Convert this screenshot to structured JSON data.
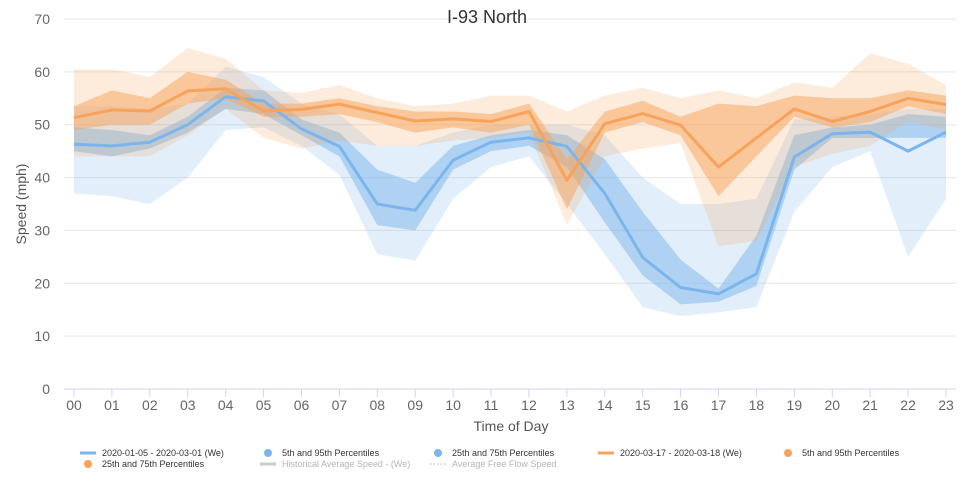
{
  "chart_data": {
    "type": "area",
    "title": "I-93 North",
    "xlabel": "Time of Day",
    "ylabel": "Speed (mph)",
    "ylim": [
      0,
      70
    ],
    "yticks": [
      0,
      10,
      20,
      30,
      40,
      50,
      60,
      70
    ],
    "categories": [
      "00",
      "01",
      "02",
      "03",
      "04",
      "05",
      "06",
      "07",
      "08",
      "09",
      "10",
      "11",
      "12",
      "13",
      "14",
      "15",
      "16",
      "17",
      "18",
      "19",
      "20",
      "21",
      "22",
      "23"
    ],
    "grid": true,
    "legend_position": "bottom",
    "series": [
      {
        "name": "2020-01-05 - 2020-03-01 (We)",
        "color": "#7cb5ec",
        "values": [
          46.3,
          46.0,
          46.7,
          50.0,
          55.3,
          54.5,
          49.2,
          45.9,
          35.0,
          33.8,
          43.3,
          46.7,
          47.5,
          45.9,
          37.0,
          24.9,
          19.2,
          18.0,
          21.8,
          43.9,
          48.3,
          48.6,
          45.0,
          48.6
        ],
        "p5": [
          37.0,
          36.5,
          35.0,
          40.0,
          49.0,
          49.5,
          46.0,
          40.5,
          25.5,
          24.3,
          36.0,
          42.0,
          44.0,
          35.0,
          25.5,
          15.5,
          13.8,
          14.5,
          15.5,
          33.5,
          42.0,
          45.0,
          25.0,
          36.0
        ],
        "p95": [
          53.5,
          53.5,
          53.0,
          54.0,
          61.0,
          59.0,
          54.0,
          52.0,
          46.0,
          46.0,
          48.5,
          50.0,
          50.0,
          50.0,
          48.0,
          40.0,
          35.0,
          35.0,
          36.0,
          51.0,
          51.5,
          52.0,
          53.0,
          53.0
        ],
        "p25": [
          45.0,
          44.0,
          45.5,
          48.5,
          53.0,
          52.0,
          48.0,
          44.0,
          31.0,
          30.0,
          41.5,
          45.0,
          46.0,
          42.0,
          31.5,
          21.5,
          16.0,
          16.5,
          19.5,
          41.5,
          47.5,
          47.5,
          47.5,
          47.5
        ],
        "p75": [
          49.5,
          49.0,
          48.0,
          51.5,
          57.0,
          56.5,
          51.0,
          48.5,
          41.5,
          39.0,
          46.0,
          48.0,
          49.0,
          48.0,
          43.5,
          33.5,
          24.5,
          19.0,
          29.0,
          48.0,
          49.5,
          50.0,
          52.0,
          51.5
        ]
      },
      {
        "name": "2020-03-17 - 2020-03-18 (We)",
        "color": "#f7a35c",
        "values": [
          51.3,
          52.8,
          52.6,
          56.4,
          56.8,
          52.6,
          52.9,
          53.9,
          52.3,
          50.7,
          51.1,
          50.6,
          52.5,
          39.5,
          50.2,
          52.1,
          49.9,
          42.0,
          47.5,
          53.0,
          50.6,
          52.5,
          55.0,
          53.8
        ],
        "p5": [
          44.0,
          44.0,
          44.0,
          48.0,
          53.0,
          47.5,
          45.5,
          47.0,
          46.0,
          46.0,
          47.0,
          47.5,
          48.5,
          31.0,
          44.0,
          45.5,
          46.5,
          27.0,
          28.0,
          42.0,
          44.5,
          46.0,
          50.5,
          49.0
        ],
        "p95": [
          60.5,
          60.5,
          59.0,
          64.5,
          62.5,
          56.5,
          56.0,
          57.5,
          55.0,
          53.5,
          54.0,
          55.5,
          55.5,
          52.5,
          55.5,
          57.0,
          55.0,
          56.5,
          55.0,
          58.0,
          57.0,
          63.5,
          61.5,
          57.5
        ],
        "p25": [
          49.0,
          50.0,
          50.0,
          54.0,
          55.0,
          51.5,
          51.5,
          52.0,
          50.5,
          48.5,
          49.5,
          48.5,
          50.0,
          34.0,
          48.5,
          50.5,
          48.0,
          36.5,
          44.0,
          51.5,
          49.5,
          50.5,
          53.5,
          52.0
        ],
        "p75": [
          53.5,
          56.5,
          55.0,
          60.0,
          58.5,
          54.0,
          54.0,
          55.0,
          53.5,
          52.5,
          52.5,
          52.0,
          54.0,
          43.5,
          52.5,
          54.5,
          51.5,
          54.0,
          53.5,
          55.5,
          55.0,
          55.0,
          56.5,
          55.5
        ]
      }
    ],
    "legend": [
      {
        "label": "2020-01-05 - 2020-03-01 (We)",
        "symbol": "line",
        "color": "#7cb5ec",
        "muted": false
      },
      {
        "label": "5th and 95th Percentiles",
        "symbol": "dot",
        "color": "#7cb5ec",
        "muted": false
      },
      {
        "label": "25th and 75th Percentiles",
        "symbol": "dot",
        "color": "#7cb5ec",
        "muted": false
      },
      {
        "label": "2020-03-17 - 2020-03-18 (We)",
        "symbol": "line",
        "color": "#f7a35c",
        "muted": false
      },
      {
        "label": "5th and 95th Percentiles",
        "symbol": "dot",
        "color": "#f7a35c",
        "muted": false
      },
      {
        "label": "25th and 75th Percentiles",
        "symbol": "dot",
        "color": "#f7a35c",
        "muted": false
      },
      {
        "label": "Historical Average Speed - (We)",
        "symbol": "line",
        "color": "#cccccc",
        "muted": true
      },
      {
        "label": "Average Free Flow Speed",
        "symbol": "dotted",
        "color": "#cccccc",
        "muted": true
      }
    ]
  }
}
